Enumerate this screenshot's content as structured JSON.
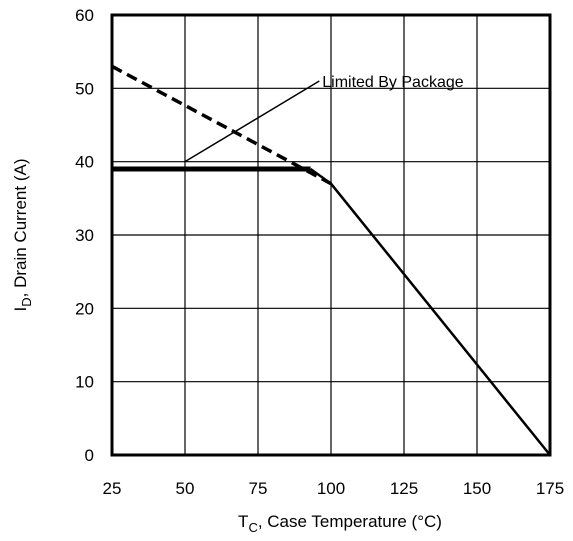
{
  "chart_data": {
    "type": "line",
    "title": "",
    "xlabel": {
      "main": "T",
      "sub": "C",
      "rest": ", Case Temperature (°C)"
    },
    "ylabel": {
      "main": "I",
      "sub": "D",
      "rest": ",  Drain Current (A)"
    },
    "xlim": [
      25,
      175
    ],
    "ylim": [
      0,
      60
    ],
    "x_ticks": [
      25,
      50,
      75,
      100,
      125,
      150,
      175
    ],
    "y_ticks": [
      0,
      10,
      20,
      30,
      40,
      50,
      60
    ],
    "x_tick_labels": [
      "25",
      "50",
      "75",
      "100",
      "125",
      "150",
      "175"
    ],
    "y_tick_labels": [
      "0",
      "10",
      "20",
      "30",
      "40",
      "50",
      "60"
    ],
    "grid": true,
    "legend": "none",
    "series": [
      {
        "style": "dashed",
        "x": [
          25,
          100
        ],
        "y": [
          53,
          37
        ]
      },
      {
        "style": "solid-thick",
        "x": [
          25,
          93
        ],
        "y": [
          39,
          39
        ]
      },
      {
        "style": "solid",
        "x": [
          93,
          100,
          175
        ],
        "y": [
          39,
          37,
          0
        ]
      }
    ],
    "annotations": [
      {
        "text": "Limited By Package",
        "text_x": 97,
        "text_y": 51,
        "line_from": [
          50,
          40
        ],
        "line_to": [
          96,
          51
        ]
      }
    ]
  }
}
